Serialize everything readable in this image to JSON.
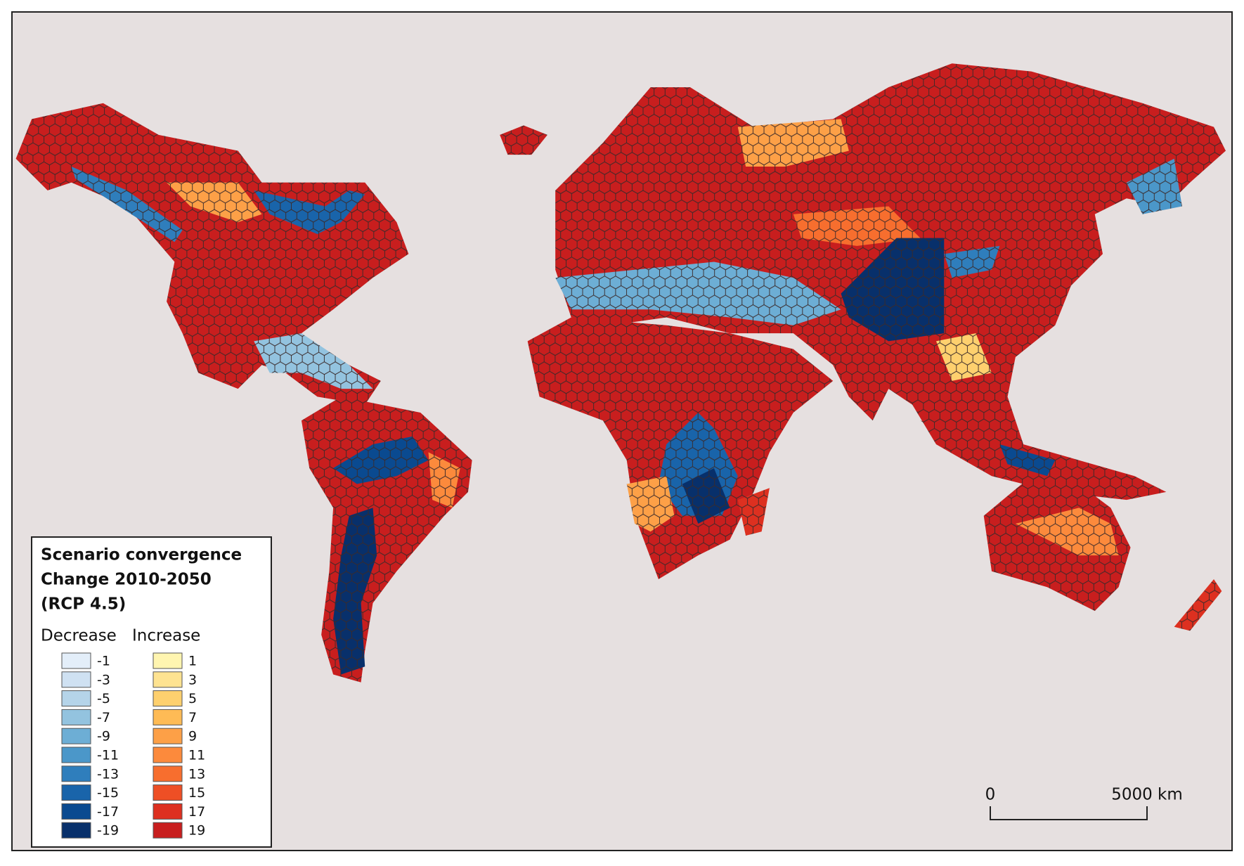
{
  "legend": {
    "title": [
      "Scenario convergence",
      "Change 2010-2050",
      "(RCP 4.5)"
    ],
    "decrease": {
      "heading": "Decrease",
      "items": [
        {
          "value": -1,
          "color": "#e3eef9"
        },
        {
          "value": -3,
          "color": "#cfe1f2"
        },
        {
          "value": -5,
          "color": "#b5d4e9"
        },
        {
          "value": -7,
          "color": "#93c3df"
        },
        {
          "value": -9,
          "color": "#6daed5"
        },
        {
          "value": -11,
          "color": "#4b97c9"
        },
        {
          "value": -13,
          "color": "#2f7ebc"
        },
        {
          "value": -15,
          "color": "#1964aa"
        },
        {
          "value": -17,
          "color": "#0a4a90"
        },
        {
          "value": -19,
          "color": "#08306b"
        }
      ]
    },
    "increase": {
      "heading": "Increase",
      "items": [
        {
          "value": 1,
          "color": "#fff5b0"
        },
        {
          "value": 3,
          "color": "#fee391"
        },
        {
          "value": 5,
          "color": "#fed06e"
        },
        {
          "value": 7,
          "color": "#febb55"
        },
        {
          "value": 9,
          "color": "#fda047"
        },
        {
          "value": 11,
          "color": "#fc8a3c"
        },
        {
          "value": 13,
          "color": "#f76e2e"
        },
        {
          "value": 15,
          "color": "#ee4f25"
        },
        {
          "value": 17,
          "color": "#dd3020"
        },
        {
          "value": 19,
          "color": "#c81e1e"
        }
      ]
    }
  },
  "scale_bar": {
    "start": "0",
    "end": "5000 km"
  }
}
